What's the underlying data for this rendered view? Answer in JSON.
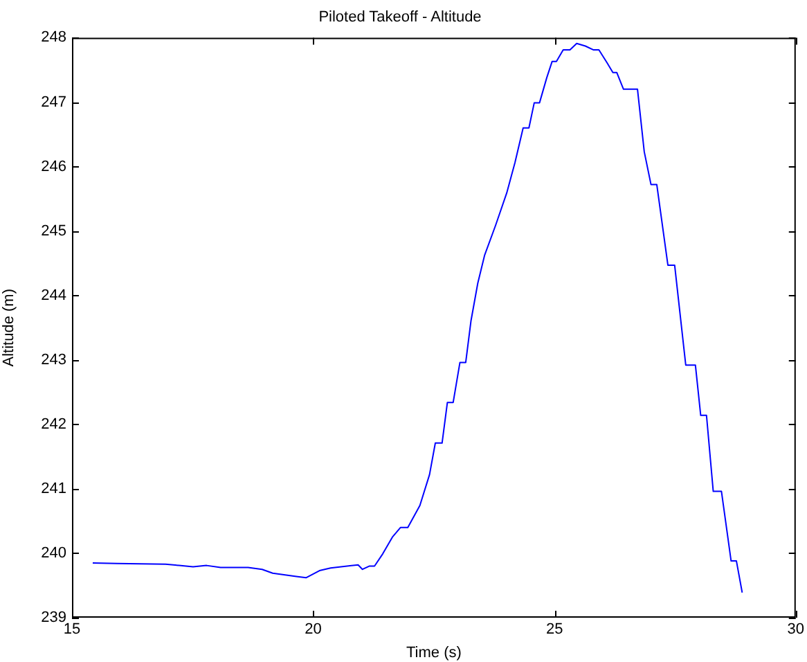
{
  "chart_data": {
    "type": "line",
    "title": "Piloted Takeoff - Altitude",
    "xlabel": "Time (s)",
    "ylabel": "Altitude (m)",
    "xlim": [
      15,
      30
    ],
    "xticks": [
      15,
      20,
      25,
      30
    ],
    "ylim": [
      239,
      248
    ],
    "yticks": [
      239,
      240,
      241,
      242,
      243,
      244,
      245,
      246,
      247,
      248
    ],
    "grid": false,
    "legend": false,
    "marker": "none",
    "line_style": "solid",
    "series": [
      {
        "color": "#0000ff",
        "x": [
          15.43,
          15.94,
          16.94,
          17.22,
          17.51,
          17.79,
          18.08,
          18.65,
          18.94,
          19.16,
          19.65,
          19.85,
          20.13,
          20.36,
          20.93,
          21.02,
          21.16,
          21.27,
          21.44,
          21.64,
          21.81,
          21.96,
          22.21,
          22.41,
          22.53,
          22.67,
          22.78,
          22.9,
          23.04,
          23.16,
          23.27,
          23.41,
          23.55,
          23.78,
          24.01,
          24.18,
          24.35,
          24.47,
          24.58,
          24.69,
          24.84,
          24.95,
          25.04,
          25.18,
          25.32,
          25.46,
          25.64,
          25.81,
          25.92,
          26.09,
          26.21,
          26.29,
          26.43,
          26.72,
          26.86,
          27.0,
          27.12,
          27.35,
          27.49,
          27.72,
          27.92,
          28.03,
          28.15,
          28.29,
          28.46,
          28.66,
          28.77,
          28.89
        ],
        "values": [
          239.85,
          239.84,
          239.83,
          239.81,
          239.79,
          239.81,
          239.78,
          239.78,
          239.75,
          239.69,
          239.64,
          239.62,
          239.73,
          239.77,
          239.82,
          239.75,
          239.8,
          239.8,
          239.99,
          240.25,
          240.4,
          240.4,
          240.74,
          241.22,
          241.71,
          241.71,
          242.34,
          242.34,
          242.96,
          242.96,
          243.61,
          244.19,
          244.62,
          245.09,
          245.59,
          246.06,
          246.6,
          246.6,
          246.99,
          246.99,
          247.38,
          247.63,
          247.63,
          247.81,
          247.81,
          247.91,
          247.87,
          247.81,
          247.81,
          247.61,
          247.46,
          247.46,
          247.2,
          247.2,
          246.23,
          245.72,
          245.72,
          244.47,
          244.47,
          242.92,
          242.92,
          242.14,
          242.14,
          240.96,
          240.96,
          239.88,
          239.88,
          239.39
        ]
      }
    ]
  }
}
